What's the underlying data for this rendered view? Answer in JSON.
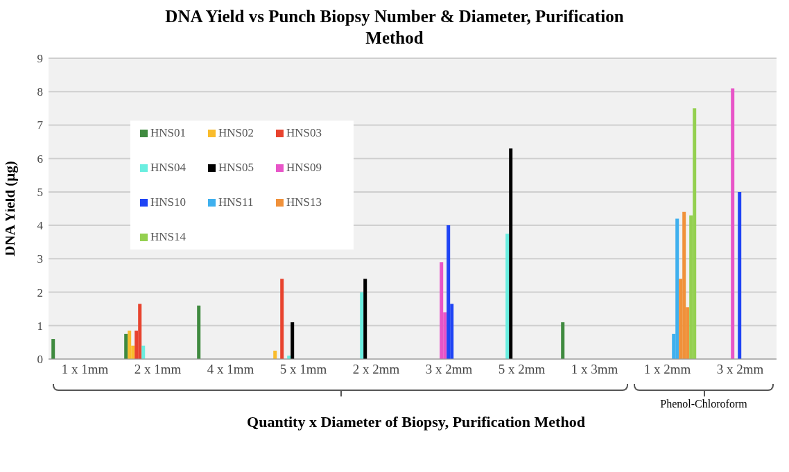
{
  "chart_data": {
    "type": "bar",
    "title": "DNA Yield vs Punch Biopsy Number & Diameter, Purification Method",
    "xlabel": "Quantity x Diameter of Biopsy, Purification Method",
    "ylabel": "DNA Yield (μg)",
    "categories": [
      "1 x 1mm",
      "2 x 1mm",
      "4 x 1mm",
      "5 x 1mm",
      "2 x 2mm",
      "3 x 2mm",
      "5 x 2mm",
      "1 x 3mm",
      "1 x 2mm",
      "3 x 2mm"
    ],
    "series": [
      {
        "name": "HNS01",
        "color": "#3f8a3f",
        "values": [
          0.6,
          0.75,
          1.6,
          null,
          null,
          null,
          null,
          1.1,
          null,
          null
        ]
      },
      {
        "name": "HNS02",
        "color": "#f9bc2c",
        "values": [
          null,
          0.85,
          null,
          0.25,
          null,
          null,
          null,
          null,
          null,
          null
        ]
      },
      {
        "color": "#f9bc2c",
        "values": [
          null,
          0.4,
          null,
          null,
          null,
          null,
          null,
          null,
          null,
          null
        ]
      },
      {
        "name": "HNS03",
        "color": "#e8432e",
        "values": [
          null,
          0.85,
          null,
          2.4,
          null,
          null,
          null,
          null,
          null,
          null
        ]
      },
      {
        "color": "#e8432e",
        "values": [
          null,
          1.65,
          null,
          null,
          null,
          null,
          null,
          null,
          null,
          null
        ]
      },
      {
        "name": "HNS04",
        "color": "#6aeee0",
        "values": [
          null,
          0.4,
          null,
          0.1,
          2.0,
          null,
          3.75,
          null,
          null,
          null
        ]
      },
      {
        "name": "HNS05",
        "color": "#000000",
        "values": [
          null,
          null,
          null,
          1.1,
          2.4,
          null,
          6.3,
          null,
          null,
          null
        ]
      },
      {
        "name": "HNS09",
        "color": "#e855c8",
        "values": [
          null,
          null,
          null,
          null,
          null,
          2.9,
          null,
          null,
          null,
          8.1
        ]
      },
      {
        "color": "#e855c8",
        "values": [
          null,
          null,
          null,
          null,
          null,
          1.4,
          null,
          null,
          null,
          null
        ]
      },
      {
        "name": "HNS10",
        "color": "#1f44f5",
        "values": [
          null,
          null,
          null,
          null,
          null,
          4.0,
          null,
          null,
          null,
          5.0
        ]
      },
      {
        "color": "#1f44f5",
        "values": [
          null,
          null,
          null,
          null,
          null,
          1.65,
          null,
          null,
          null,
          null
        ]
      },
      {
        "name": "HNS11",
        "color": "#3fb0ee",
        "values": [
          null,
          null,
          null,
          null,
          null,
          null,
          null,
          null,
          0.75,
          null
        ]
      },
      {
        "color": "#3fb0ee",
        "values": [
          null,
          null,
          null,
          null,
          null,
          null,
          null,
          null,
          4.2,
          null
        ]
      },
      {
        "name": "HNS13",
        "color": "#f0913a",
        "values": [
          null,
          null,
          null,
          null,
          null,
          null,
          null,
          null,
          2.4,
          null
        ]
      },
      {
        "color": "#f0913a",
        "values": [
          null,
          null,
          null,
          null,
          null,
          null,
          null,
          null,
          4.4,
          null
        ]
      },
      {
        "color": "#f0913a",
        "values": [
          null,
          null,
          null,
          null,
          null,
          null,
          null,
          null,
          1.55,
          null
        ]
      },
      {
        "name": "HNS14",
        "color": "#94d050",
        "values": [
          null,
          null,
          null,
          null,
          null,
          null,
          null,
          null,
          4.3,
          null
        ]
      },
      {
        "color": "#94d050",
        "values": [
          null,
          null,
          null,
          null,
          null,
          null,
          null,
          null,
          7.5,
          null
        ]
      }
    ],
    "ylim": [
      0,
      9
    ],
    "yticks": [
      0,
      1,
      2,
      3,
      4,
      5,
      6,
      7,
      8,
      9
    ],
    "grid": "y",
    "legend": "top left",
    "annotations": [
      "Phenol-Chloroform"
    ]
  }
}
